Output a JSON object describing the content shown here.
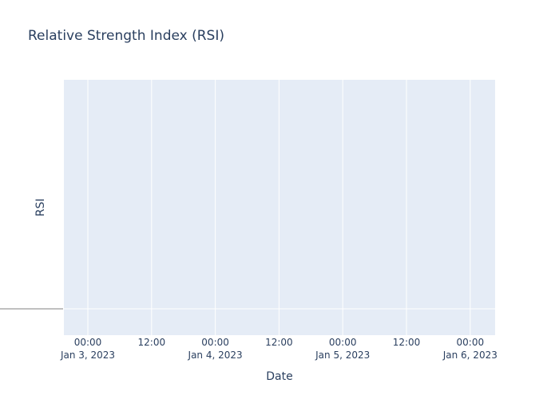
{
  "chart_data": {
    "type": "line",
    "title": "Relative Strength Index (RSI)",
    "xlabel": "Date",
    "ylabel": "RSI",
    "x_ticks": [
      {
        "time": "00:00",
        "date": "Jan 3, 2023"
      },
      {
        "time": "12:00",
        "date": ""
      },
      {
        "time": "00:00",
        "date": "Jan 4, 2023"
      },
      {
        "time": "12:00",
        "date": ""
      },
      {
        "time": "00:00",
        "date": "Jan 5, 2023"
      },
      {
        "time": "12:00",
        "date": ""
      },
      {
        "time": "00:00",
        "date": "Jan 6, 2023"
      }
    ],
    "xlim": [
      "2023-01-02T19:00:00",
      "2023-01-06T04:00:00"
    ],
    "series": [],
    "grid": true,
    "plot_bgcolor": "#e5ecf6",
    "paper_bgcolor": "#ffffff",
    "gridcolor": "#ffffff",
    "text_color": "#2a3f5f",
    "reference_line_color": "#808080"
  }
}
